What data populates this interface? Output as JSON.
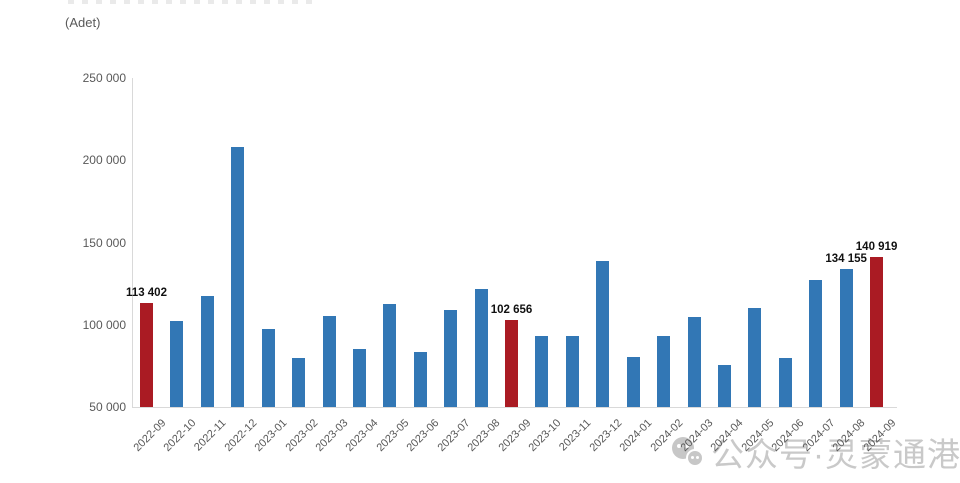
{
  "chart": {
    "units_label": "(Adet)"
  },
  "watermark": {
    "icon": "wechat-official-account-icon",
    "text": "公众号·灵蒙通港"
  },
  "colors": {
    "bar_blue": "#3277B5",
    "bar_red": "#AA1B23",
    "axis_line": "#D9D9D9",
    "tick_text": "#595959",
    "data_label_text": "#111111",
    "watermark_gray": "#9E9E9E"
  },
  "chart_data": {
    "type": "bar",
    "title": "",
    "ylabel": "(Adet)",
    "categories": [
      "2022-09",
      "2022-10",
      "2022-11",
      "2022-12",
      "2023-01",
      "2023-02",
      "2023-03",
      "2023-04",
      "2023-05",
      "2023-06",
      "2023-07",
      "2023-08",
      "2023-09",
      "2023-10",
      "2023-11",
      "2023-12",
      "2024-01",
      "2024-02",
      "2024-03",
      "2024-04",
      "2024-05",
      "2024-06",
      "2024-07",
      "2024-08",
      "2024-09"
    ],
    "values": [
      113402,
      102000,
      117500,
      208000,
      97400,
      80000,
      105500,
      85300,
      112800,
      83400,
      109200,
      121900,
      102656,
      93300,
      93000,
      138600,
      80200,
      93300,
      104900,
      75500,
      110400,
      79500,
      127000,
      134155,
      140919
    ],
    "highlight_indices": [
      0,
      12,
      24
    ],
    "data_labels": [
      {
        "index": 0,
        "text": "113 402"
      },
      {
        "index": 12,
        "text": "102 656"
      },
      {
        "index": 23,
        "text": "134 155"
      },
      {
        "index": 24,
        "text": "140 919"
      }
    ],
    "yticks": [
      50000,
      100000,
      150000,
      200000,
      250000
    ],
    "ytick_labels": [
      "50 000",
      "100 000",
      "150 000",
      "200 000",
      "250 000"
    ],
    "ylim": [
      50000,
      250000
    ],
    "grid": false,
    "legend": "none"
  }
}
